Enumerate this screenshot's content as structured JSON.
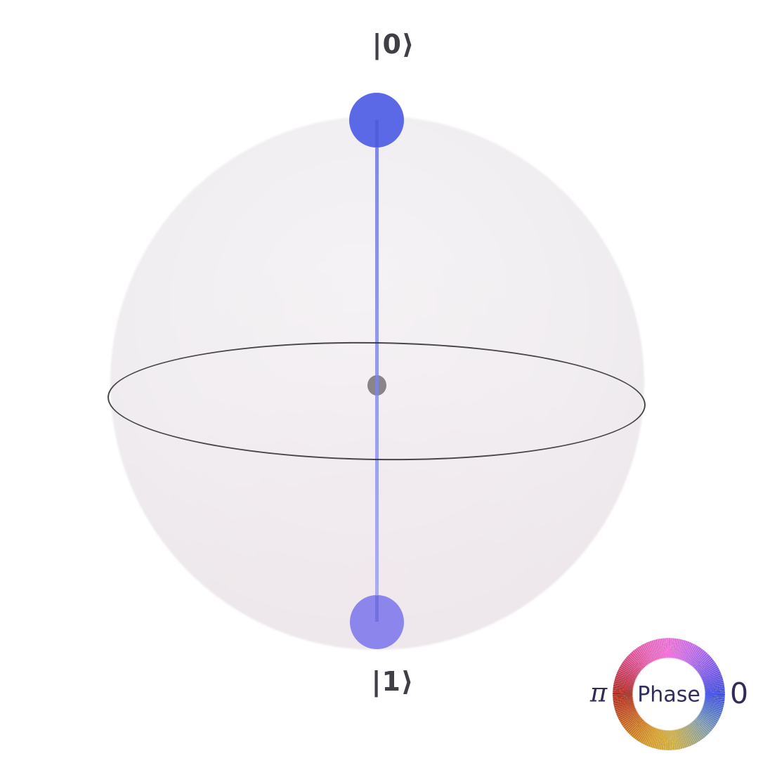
{
  "figure": {
    "kind": "qsphere-state-plot",
    "labels": {
      "top_ket": "|0⟩",
      "bottom_ket": "|1⟩"
    },
    "legend": {
      "title": "Phase",
      "left_tick": "π",
      "right_tick": "0"
    },
    "colors": {
      "background": "#ffffff",
      "sphere_fill": "#f0edf0",
      "equator_stroke": "#323034",
      "origin_dot": "#8a8488",
      "state_line": "#6973e4",
      "node_top": "#5b69e7",
      "node_bottom": "#8c85ec",
      "ket_text": "#413f46",
      "legend_text": "#322e5e",
      "phase_wheel_right_0": "#3c4ad9",
      "phase_wheel_top": "#e96bd2",
      "phase_wheel_left_pi": "#ac2618",
      "phase_wheel_bottom": "#cdab3a"
    }
  },
  "chart_data": {
    "type": "qsphere",
    "title": "",
    "description": "Q-sphere visualization of a single-qubit state: equal-size nodes at both poles, both colored blue (phase 0), connected through the sphere origin.",
    "nodes": [
      {
        "basis_state": "|0⟩",
        "position": "north_pole",
        "phase_rad": 0,
        "phase_color": "#5b69e7",
        "relative_size": 1.0
      },
      {
        "basis_state": "|1⟩",
        "position": "south_pole",
        "phase_rad": 0,
        "phase_color": "#8c85ec",
        "relative_size": 1.0
      }
    ],
    "phase_legend": {
      "label": "Phase",
      "right_value": "0",
      "left_value": "π",
      "wheel_colors_counterclockwise_from_right": [
        "#3c4ad9",
        "#9c62e6",
        "#e96bd2",
        "#d94f92",
        "#ac2618",
        "#c9741e",
        "#cdab3a",
        "#7d97ac"
      ]
    },
    "layout": {
      "grid": false,
      "axes": false,
      "legend_position": "bottom-right"
    }
  }
}
